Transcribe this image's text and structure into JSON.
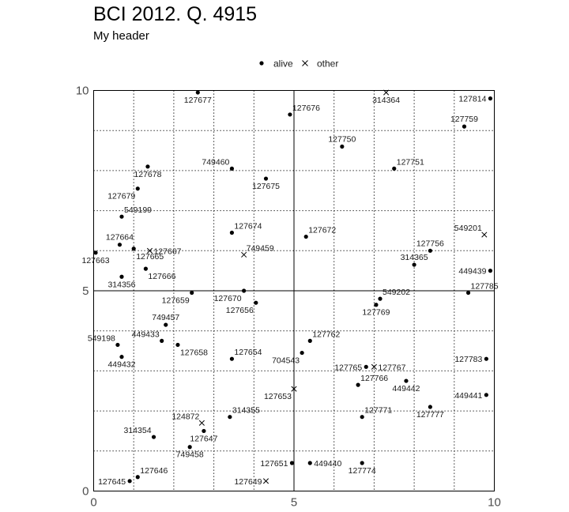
{
  "chart_data": {
    "type": "scatter",
    "title": "BCI 2012. Q. 4915",
    "subtitle": "My header",
    "xlabel": "",
    "ylabel": "",
    "xlim": [
      0,
      10
    ],
    "ylim": [
      0,
      10
    ],
    "x_ticks": [
      "0",
      "5",
      "10"
    ],
    "y_ticks": [
      "0",
      "5",
      "10"
    ],
    "grid": true,
    "legend": {
      "position": "top",
      "entries": [
        {
          "key": "alive",
          "label": "alive",
          "marker": "dot"
        },
        {
          "key": "other",
          "label": "other",
          "marker": "x"
        }
      ]
    },
    "colors": {
      "points": "#000000",
      "grid": "#000000",
      "axis_text": "#4d4d4d"
    },
    "points": [
      {
        "tag": "127677",
        "x": 2.6,
        "y": 9.95,
        "status": "alive",
        "label_pos": "below"
      },
      {
        "tag": "314364",
        "x": 7.3,
        "y": 9.95,
        "status": "other",
        "label_pos": "below"
      },
      {
        "tag": "127814",
        "x": 9.9,
        "y": 9.8,
        "status": "alive",
        "label_pos": "left"
      },
      {
        "tag": "127676",
        "x": 4.9,
        "y": 9.4,
        "status": "alive",
        "label_pos": "above-right"
      },
      {
        "tag": "127759",
        "x": 9.25,
        "y": 9.1,
        "status": "alive",
        "label_pos": "above"
      },
      {
        "tag": "127750",
        "x": 6.2,
        "y": 8.6,
        "status": "alive",
        "label_pos": "above"
      },
      {
        "tag": "749460",
        "x": 3.45,
        "y": 8.05,
        "status": "alive",
        "label_pos": "above-left"
      },
      {
        "tag": "127751",
        "x": 7.5,
        "y": 8.05,
        "status": "alive",
        "label_pos": "above-right"
      },
      {
        "tag": "127678",
        "x": 1.35,
        "y": 8.1,
        "status": "alive",
        "label_pos": "below"
      },
      {
        "tag": "127675",
        "x": 4.3,
        "y": 7.8,
        "status": "alive",
        "label_pos": "below"
      },
      {
        "tag": "127679",
        "x": 1.1,
        "y": 7.55,
        "status": "alive",
        "label_pos": "below-left"
      },
      {
        "tag": "549199",
        "x": 0.7,
        "y": 6.85,
        "status": "alive",
        "label_pos": "above-right"
      },
      {
        "tag": "127674",
        "x": 3.45,
        "y": 6.45,
        "status": "alive",
        "label_pos": "above-right"
      },
      {
        "tag": "549201",
        "x": 9.75,
        "y": 6.4,
        "status": "other",
        "label_pos": "above-left"
      },
      {
        "tag": "127672",
        "x": 5.3,
        "y": 6.35,
        "status": "alive",
        "label_pos": "above-right"
      },
      {
        "tag": "127664",
        "x": 0.65,
        "y": 6.15,
        "status": "alive",
        "label_pos": "above"
      },
      {
        "tag": "127756",
        "x": 8.4,
        "y": 6.0,
        "status": "alive",
        "label_pos": "above"
      },
      {
        "tag": "127667",
        "x": 1.4,
        "y": 6.0,
        "status": "other",
        "label_pos": "right"
      },
      {
        "tag": "749459",
        "x": 3.75,
        "y": 5.9,
        "status": "other",
        "label_pos": "above-right"
      },
      {
        "tag": "127663",
        "x": 0.05,
        "y": 5.95,
        "status": "alive",
        "label_pos": "below"
      },
      {
        "tag": "127665",
        "x": 1.0,
        "y": 6.05,
        "status": "alive",
        "label_pos": "below-right"
      },
      {
        "tag": "314365",
        "x": 8.0,
        "y": 5.65,
        "status": "alive",
        "label_pos": "above"
      },
      {
        "tag": "127666",
        "x": 1.3,
        "y": 5.55,
        "status": "alive",
        "label_pos": "below-right"
      },
      {
        "tag": "449439",
        "x": 9.9,
        "y": 5.5,
        "status": "alive",
        "label_pos": "left"
      },
      {
        "tag": "314356",
        "x": 0.7,
        "y": 5.35,
        "status": "alive",
        "label_pos": "below"
      },
      {
        "tag": "127785",
        "x": 9.35,
        "y": 4.95,
        "status": "alive",
        "label_pos": "above-right"
      },
      {
        "tag": "127670",
        "x": 3.75,
        "y": 5.0,
        "status": "alive",
        "label_pos": "below-left"
      },
      {
        "tag": "127659",
        "x": 2.45,
        "y": 4.95,
        "status": "alive",
        "label_pos": "below-left"
      },
      {
        "tag": "549202",
        "x": 7.15,
        "y": 4.8,
        "status": "alive",
        "label_pos": "above-right"
      },
      {
        "tag": "127769",
        "x": 7.05,
        "y": 4.65,
        "status": "alive",
        "label_pos": "below"
      },
      {
        "tag": "127656",
        "x": 4.05,
        "y": 4.7,
        "status": "alive",
        "label_pos": "below-left"
      },
      {
        "tag": "749457",
        "x": 1.8,
        "y": 4.15,
        "status": "alive",
        "label_pos": "above"
      },
      {
        "tag": "449433",
        "x": 1.7,
        "y": 3.75,
        "status": "alive",
        "label_pos": "above-left"
      },
      {
        "tag": "127762",
        "x": 5.4,
        "y": 3.75,
        "status": "alive",
        "label_pos": "above-right"
      },
      {
        "tag": "549198",
        "x": 0.6,
        "y": 3.65,
        "status": "alive",
        "label_pos": "above-left"
      },
      {
        "tag": "127658",
        "x": 2.1,
        "y": 3.65,
        "status": "alive",
        "label_pos": "below-right"
      },
      {
        "tag": "704543",
        "x": 5.2,
        "y": 3.45,
        "status": "alive",
        "label_pos": "below-left"
      },
      {
        "tag": "127654",
        "x": 3.45,
        "y": 3.3,
        "status": "alive",
        "label_pos": "above-right"
      },
      {
        "tag": "449432",
        "x": 0.7,
        "y": 3.35,
        "status": "alive",
        "label_pos": "below"
      },
      {
        "tag": "127783",
        "x": 9.8,
        "y": 3.3,
        "status": "alive",
        "label_pos": "left"
      },
      {
        "tag": "127765",
        "x": 6.8,
        "y": 3.1,
        "status": "alive",
        "label_pos": "left"
      },
      {
        "tag": "127767",
        "x": 7.0,
        "y": 3.1,
        "status": "other",
        "label_pos": "right"
      },
      {
        "tag": "127766",
        "x": 6.6,
        "y": 2.65,
        "status": "alive",
        "label_pos": "above-right"
      },
      {
        "tag": "449442",
        "x": 7.8,
        "y": 2.75,
        "status": "alive",
        "label_pos": "below"
      },
      {
        "tag": "127653",
        "x": 5.0,
        "y": 2.55,
        "status": "other",
        "label_pos": "below-left"
      },
      {
        "tag": "449441",
        "x": 9.8,
        "y": 2.4,
        "status": "alive",
        "label_pos": "left"
      },
      {
        "tag": "127777",
        "x": 8.4,
        "y": 2.1,
        "status": "alive",
        "label_pos": "below"
      },
      {
        "tag": "124872",
        "x": 2.7,
        "y": 1.7,
        "status": "other",
        "label_pos": "above-left"
      },
      {
        "tag": "314355",
        "x": 3.4,
        "y": 1.85,
        "status": "alive",
        "label_pos": "above-right"
      },
      {
        "tag": "127771",
        "x": 6.7,
        "y": 1.85,
        "status": "alive",
        "label_pos": "above-right"
      },
      {
        "tag": "127647",
        "x": 2.75,
        "y": 1.5,
        "status": "alive",
        "label_pos": "below"
      },
      {
        "tag": "314354",
        "x": 1.5,
        "y": 1.35,
        "status": "alive",
        "label_pos": "above-left"
      },
      {
        "tag": "749458",
        "x": 2.4,
        "y": 1.1,
        "status": "alive",
        "label_pos": "below"
      },
      {
        "tag": "127651",
        "x": 4.95,
        "y": 0.7,
        "status": "alive",
        "label_pos": "left"
      },
      {
        "tag": "449440",
        "x": 5.4,
        "y": 0.7,
        "status": "alive",
        "label_pos": "right"
      },
      {
        "tag": "127774",
        "x": 6.7,
        "y": 0.7,
        "status": "alive",
        "label_pos": "below"
      },
      {
        "tag": "127646",
        "x": 1.1,
        "y": 0.35,
        "status": "alive",
        "label_pos": "above-right"
      },
      {
        "tag": "127645",
        "x": 0.9,
        "y": 0.25,
        "status": "alive",
        "label_pos": "left"
      },
      {
        "tag": "127649",
        "x": 4.3,
        "y": 0.25,
        "status": "other",
        "label_pos": "left"
      }
    ]
  }
}
